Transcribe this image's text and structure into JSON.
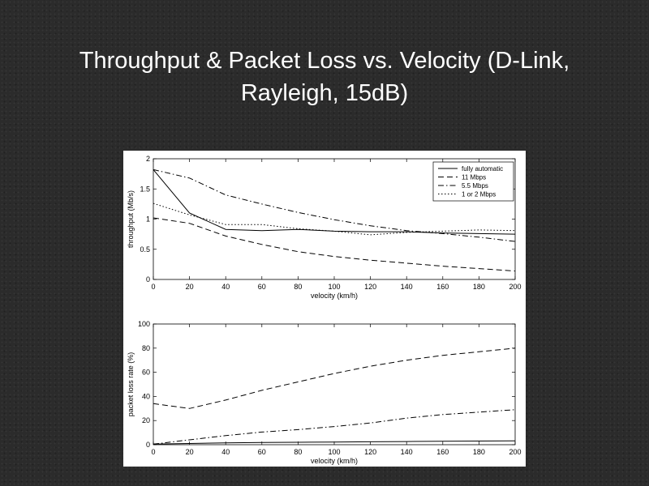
{
  "slide": {
    "title_line1": "Throughput & Packet Loss vs. Velocity (D-Link,",
    "title_line2": "Rayleigh, 15dB)"
  },
  "chart_data": [
    {
      "type": "line",
      "xlabel": "velocity (km/h)",
      "ylabel": "throughput (Mb/s)",
      "xlim": [
        0,
        200
      ],
      "ylim": [
        0,
        2
      ],
      "xticks": [
        0,
        20,
        40,
        60,
        80,
        100,
        120,
        140,
        160,
        180,
        200
      ],
      "yticks": [
        0,
        0.5,
        1,
        1.5,
        2
      ],
      "ytick_labels": [
        "0",
        "0.5",
        "1",
        "1.5",
        "2"
      ],
      "legend": "top-right",
      "grid": false,
      "x": [
        0,
        20,
        40,
        60,
        80,
        100,
        120,
        140,
        160,
        180,
        200
      ],
      "series": [
        {
          "name": "fully automatic",
          "style": "solid",
          "values": [
            1.82,
            1.1,
            0.83,
            0.81,
            0.83,
            0.8,
            0.79,
            0.79,
            0.77,
            0.76,
            0.75
          ]
        },
        {
          "name": "11 Mbps",
          "style": "dashed",
          "values": [
            1.02,
            0.93,
            0.72,
            0.58,
            0.46,
            0.38,
            0.32,
            0.27,
            0.22,
            0.18,
            0.14
          ]
        },
        {
          "name": "5.5 Mbps",
          "style": "dashdot",
          "values": [
            1.82,
            1.68,
            1.4,
            1.25,
            1.11,
            0.99,
            0.89,
            0.81,
            0.76,
            0.7,
            0.63
          ]
        },
        {
          "name": "1 or 2 Mbps",
          "style": "dotted",
          "values": [
            1.26,
            1.07,
            0.91,
            0.91,
            0.84,
            0.8,
            0.74,
            0.78,
            0.8,
            0.82,
            0.81
          ]
        }
      ]
    },
    {
      "type": "line",
      "xlabel": "velocity (km/h)",
      "ylabel": "packet loss rate (%)",
      "xlim": [
        0,
        200
      ],
      "ylim": [
        0,
        100
      ],
      "xticks": [
        0,
        20,
        40,
        60,
        80,
        100,
        120,
        140,
        160,
        180,
        200
      ],
      "yticks": [
        0,
        20,
        40,
        60,
        80,
        100
      ],
      "ytick_labels": [
        "0",
        "20",
        "40",
        "60",
        "80",
        "100"
      ],
      "grid": false,
      "x": [
        0,
        20,
        40,
        60,
        80,
        100,
        120,
        140,
        160,
        180,
        200
      ],
      "series": [
        {
          "style": "solid",
          "values": [
            0.5,
            1,
            1.5,
            1.8,
            2,
            2.2,
            2.4,
            2.6,
            2.8,
            3,
            3.2
          ]
        },
        {
          "style": "dashed",
          "values": [
            34,
            30,
            37,
            45,
            52,
            59,
            65,
            70,
            74,
            77,
            80
          ]
        },
        {
          "style": "dashdot",
          "values": [
            0.5,
            4,
            7.5,
            10.5,
            12.5,
            15,
            18,
            22,
            25,
            27,
            29
          ]
        }
      ]
    }
  ]
}
